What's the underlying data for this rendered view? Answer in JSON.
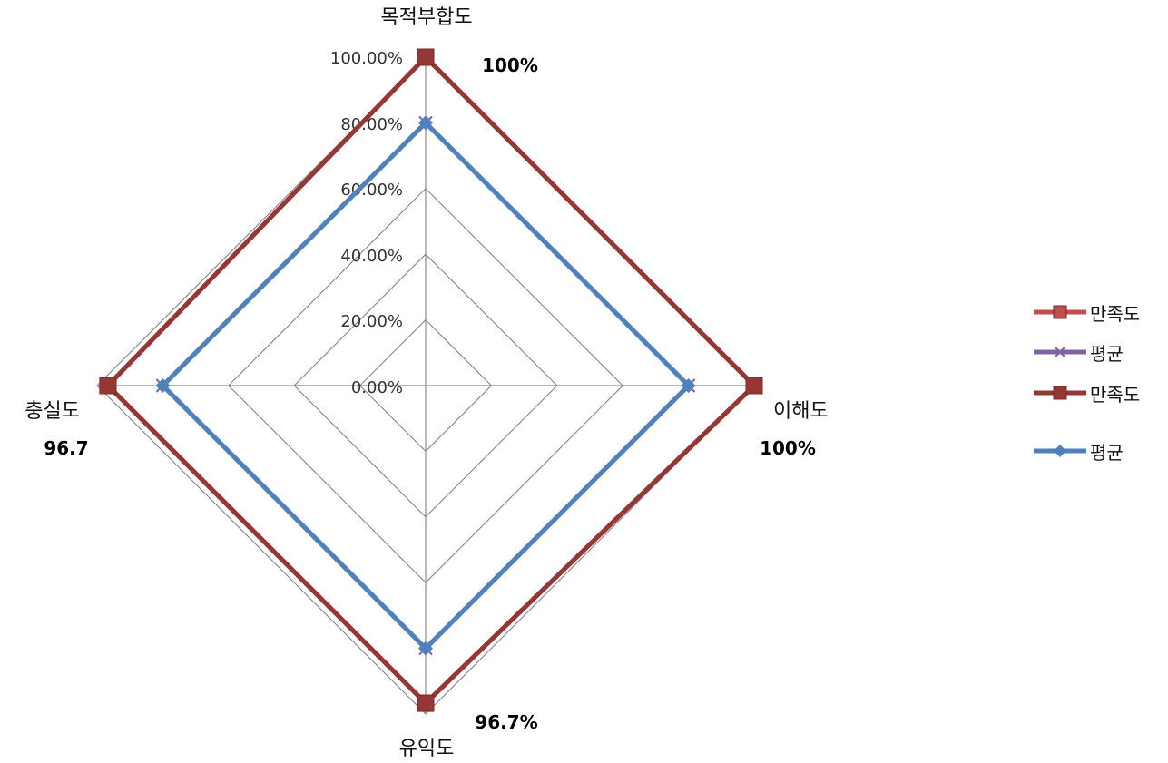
{
  "chart_data": {
    "type": "radar",
    "categories": [
      "목적부합도",
      "이해도",
      "유익도",
      "충실도"
    ],
    "rlim": [
      0,
      100
    ],
    "tick_labels": [
      "0.00%",
      "20.00%",
      "40.00%",
      "60.00%",
      "80.00%",
      "100.00%"
    ],
    "series": [
      {
        "name": "만족도",
        "values": [
          100,
          100,
          96.7,
          96.7
        ],
        "color": "#C0504D",
        "marker": "square"
      },
      {
        "name": "평균",
        "values": [
          80,
          80,
          80,
          80
        ],
        "color": "#8064A2",
        "marker": "x"
      },
      {
        "name": "만족도",
        "values": [
          100,
          100,
          96.7,
          96.7
        ],
        "color": "#953735",
        "marker": "square"
      },
      {
        "name": "평균",
        "values": [
          80,
          80,
          80,
          80
        ],
        "color": "#4F81BD",
        "marker": "diamond"
      }
    ],
    "data_labels": [
      "100%",
      "100%",
      "96.7%",
      "96.7"
    ],
    "legend_position": "right"
  }
}
